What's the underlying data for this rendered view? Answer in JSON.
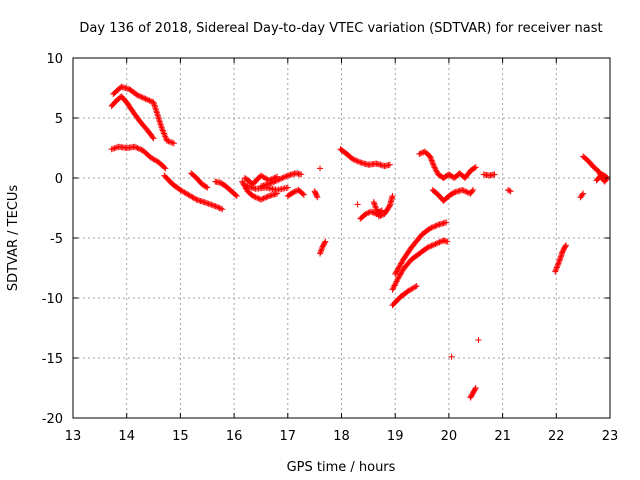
{
  "chart_data": {
    "type": "scatter",
    "title": "Day 136 of 2018, Sidereal Day-to-day VTEC variation (SDTVAR) for receiver nast",
    "xlabel": "GPS time / hours",
    "ylabel": "SDTVAR / TECUs",
    "xlim": [
      13,
      23
    ],
    "ylim": [
      -20,
      10
    ],
    "xticks": [
      13,
      14,
      15,
      16,
      17,
      18,
      19,
      20,
      21,
      22,
      23
    ],
    "yticks": [
      -20,
      -15,
      -10,
      -5,
      0,
      5,
      10
    ],
    "grid": true,
    "marker": "+",
    "color": "#ff0000",
    "segments": [
      [
        [
          13.75,
          7.0
        ],
        [
          13.9,
          7.6
        ],
        [
          14.05,
          7.4
        ],
        [
          14.2,
          6.9
        ],
        [
          14.35,
          6.6
        ],
        [
          14.5,
          6.3
        ],
        [
          14.58,
          5.2
        ],
        [
          14.65,
          4.2
        ],
        [
          14.75,
          3.1
        ],
        [
          14.88,
          2.9
        ]
      ],
      [
        [
          13.72,
          6.0
        ],
        [
          13.8,
          6.4
        ],
        [
          13.9,
          6.8
        ],
        [
          14.0,
          6.3
        ],
        [
          14.12,
          5.5
        ],
        [
          14.25,
          4.7
        ],
        [
          14.4,
          3.9
        ],
        [
          14.5,
          3.3
        ]
      ],
      [
        [
          13.72,
          2.4
        ],
        [
          13.85,
          2.6
        ],
        [
          14.0,
          2.5
        ],
        [
          14.15,
          2.6
        ],
        [
          14.3,
          2.3
        ],
        [
          14.45,
          1.7
        ],
        [
          14.6,
          1.3
        ],
        [
          14.72,
          0.8
        ]
      ],
      [
        [
          14.7,
          0.2
        ],
        [
          14.85,
          -0.5
        ],
        [
          15.0,
          -1.0
        ],
        [
          15.15,
          -1.4
        ],
        [
          15.3,
          -1.8
        ],
        [
          15.5,
          -2.1
        ],
        [
          15.68,
          -2.4
        ],
        [
          15.78,
          -2.6
        ]
      ],
      [
        [
          15.2,
          0.4
        ],
        [
          15.3,
          0.0
        ],
        [
          15.4,
          -0.5
        ],
        [
          15.5,
          -0.8
        ]
      ],
      [
        [
          15.65,
          -0.3
        ],
        [
          15.75,
          -0.4
        ],
        [
          15.85,
          -0.7
        ],
        [
          15.95,
          -1.1
        ],
        [
          16.05,
          -1.5
        ]
      ],
      [
        [
          16.15,
          -0.3
        ],
        [
          16.25,
          -1.1
        ],
        [
          16.35,
          -1.5
        ],
        [
          16.5,
          -1.8
        ],
        [
          16.65,
          -1.5
        ],
        [
          16.8,
          -1.3
        ]
      ],
      [
        [
          16.2,
          0.0
        ],
        [
          16.35,
          -0.5
        ],
        [
          16.5,
          0.2
        ],
        [
          16.65,
          -0.2
        ],
        [
          16.8,
          0.1
        ]
      ],
      [
        [
          16.2,
          -0.6
        ],
        [
          16.4,
          -0.9
        ],
        [
          16.6,
          -0.8
        ],
        [
          16.8,
          -1.0
        ],
        [
          17.0,
          -0.8
        ]
      ],
      [
        [
          16.5,
          -0.7
        ],
        [
          16.7,
          -0.4
        ],
        [
          16.85,
          -0.1
        ],
        [
          17.0,
          0.2
        ],
        [
          17.15,
          0.4
        ],
        [
          17.25,
          0.3
        ]
      ],
      [
        [
          17.0,
          -1.5
        ],
        [
          17.1,
          -1.2
        ],
        [
          17.2,
          -1.0
        ],
        [
          17.3,
          -1.4
        ]
      ],
      [
        [
          17.5,
          -1.1
        ],
        [
          17.55,
          -1.6
        ]
      ],
      [
        [
          17.6,
          0.8
        ]
      ],
      [
        [
          17.6,
          -6.3
        ],
        [
          17.65,
          -5.7
        ],
        [
          17.7,
          -5.3
        ]
      ],
      [
        [
          17.98,
          2.4
        ],
        [
          18.1,
          2.0
        ],
        [
          18.2,
          1.6
        ],
        [
          18.35,
          1.3
        ],
        [
          18.5,
          1.1
        ],
        [
          18.65,
          1.2
        ],
        [
          18.8,
          1.0
        ],
        [
          18.9,
          1.1
        ]
      ],
      [
        [
          18.3,
          -2.2
        ]
      ],
      [
        [
          18.35,
          -3.4
        ],
        [
          18.45,
          -3.0
        ],
        [
          18.55,
          -2.8
        ],
        [
          18.65,
          -3.0
        ],
        [
          18.75,
          -2.7
        ]
      ],
      [
        [
          18.6,
          -2.0
        ],
        [
          18.7,
          -3.2
        ],
        [
          18.8,
          -3.0
        ],
        [
          18.9,
          -2.3
        ],
        [
          18.95,
          -1.5
        ]
      ],
      [
        [
          18.95,
          -10.6
        ],
        [
          19.1,
          -9.9
        ],
        [
          19.25,
          -9.4
        ],
        [
          19.4,
          -9.0
        ]
      ],
      [
        [
          18.95,
          -9.3
        ],
        [
          19.05,
          -8.4
        ],
        [
          19.15,
          -7.6
        ],
        [
          19.3,
          -6.8
        ],
        [
          19.45,
          -6.3
        ],
        [
          19.6,
          -5.8
        ],
        [
          19.75,
          -5.5
        ],
        [
          19.9,
          -5.2
        ],
        [
          19.97,
          -5.3
        ]
      ],
      [
        [
          19.0,
          -8.0
        ],
        [
          19.15,
          -6.8
        ],
        [
          19.3,
          -5.8
        ],
        [
          19.5,
          -4.7
        ],
        [
          19.65,
          -4.2
        ],
        [
          19.8,
          -3.9
        ],
        [
          19.95,
          -3.7
        ]
      ],
      [
        [
          19.45,
          2.0
        ],
        [
          19.55,
          2.2
        ],
        [
          19.65,
          1.8
        ],
        [
          19.72,
          1.0
        ],
        [
          19.8,
          0.3
        ],
        [
          19.9,
          0.0
        ],
        [
          20.0,
          0.3
        ],
        [
          20.1,
          0.0
        ],
        [
          20.2,
          0.4
        ],
        [
          20.3,
          0.0
        ],
        [
          20.4,
          0.6
        ],
        [
          20.5,
          0.9
        ]
      ],
      [
        [
          19.7,
          -1.0
        ],
        [
          19.8,
          -1.4
        ],
        [
          19.9,
          -1.9
        ],
        [
          20.0,
          -1.5
        ],
        [
          20.1,
          -1.2
        ],
        [
          20.25,
          -1.0
        ],
        [
          20.4,
          -1.3
        ],
        [
          20.45,
          -1.0
        ]
      ],
      [
        [
          20.05,
          -14.9
        ]
      ],
      [
        [
          20.55,
          -13.5
        ]
      ],
      [
        [
          20.4,
          -18.3
        ],
        [
          20.45,
          -17.9
        ],
        [
          20.5,
          -17.5
        ]
      ],
      [
        [
          20.65,
          0.3
        ],
        [
          20.75,
          0.2
        ],
        [
          20.85,
          0.3
        ]
      ],
      [
        [
          21.1,
          -1.0
        ],
        [
          21.15,
          -1.1
        ]
      ],
      [
        [
          21.98,
          -7.8
        ],
        [
          22.05,
          -7.0
        ],
        [
          22.12,
          -6.1
        ],
        [
          22.18,
          -5.6
        ]
      ],
      [
        [
          22.45,
          -1.6
        ],
        [
          22.5,
          -1.3
        ]
      ],
      [
        [
          22.5,
          1.8
        ],
        [
          22.6,
          1.4
        ],
        [
          22.7,
          0.9
        ],
        [
          22.8,
          0.5
        ],
        [
          22.85,
          0.0
        ],
        [
          22.9,
          -0.3
        ],
        [
          22.95,
          0.0
        ]
      ],
      [
        [
          22.75,
          -0.2
        ],
        [
          22.85,
          0.3
        ],
        [
          22.93,
          0.1
        ]
      ]
    ]
  }
}
